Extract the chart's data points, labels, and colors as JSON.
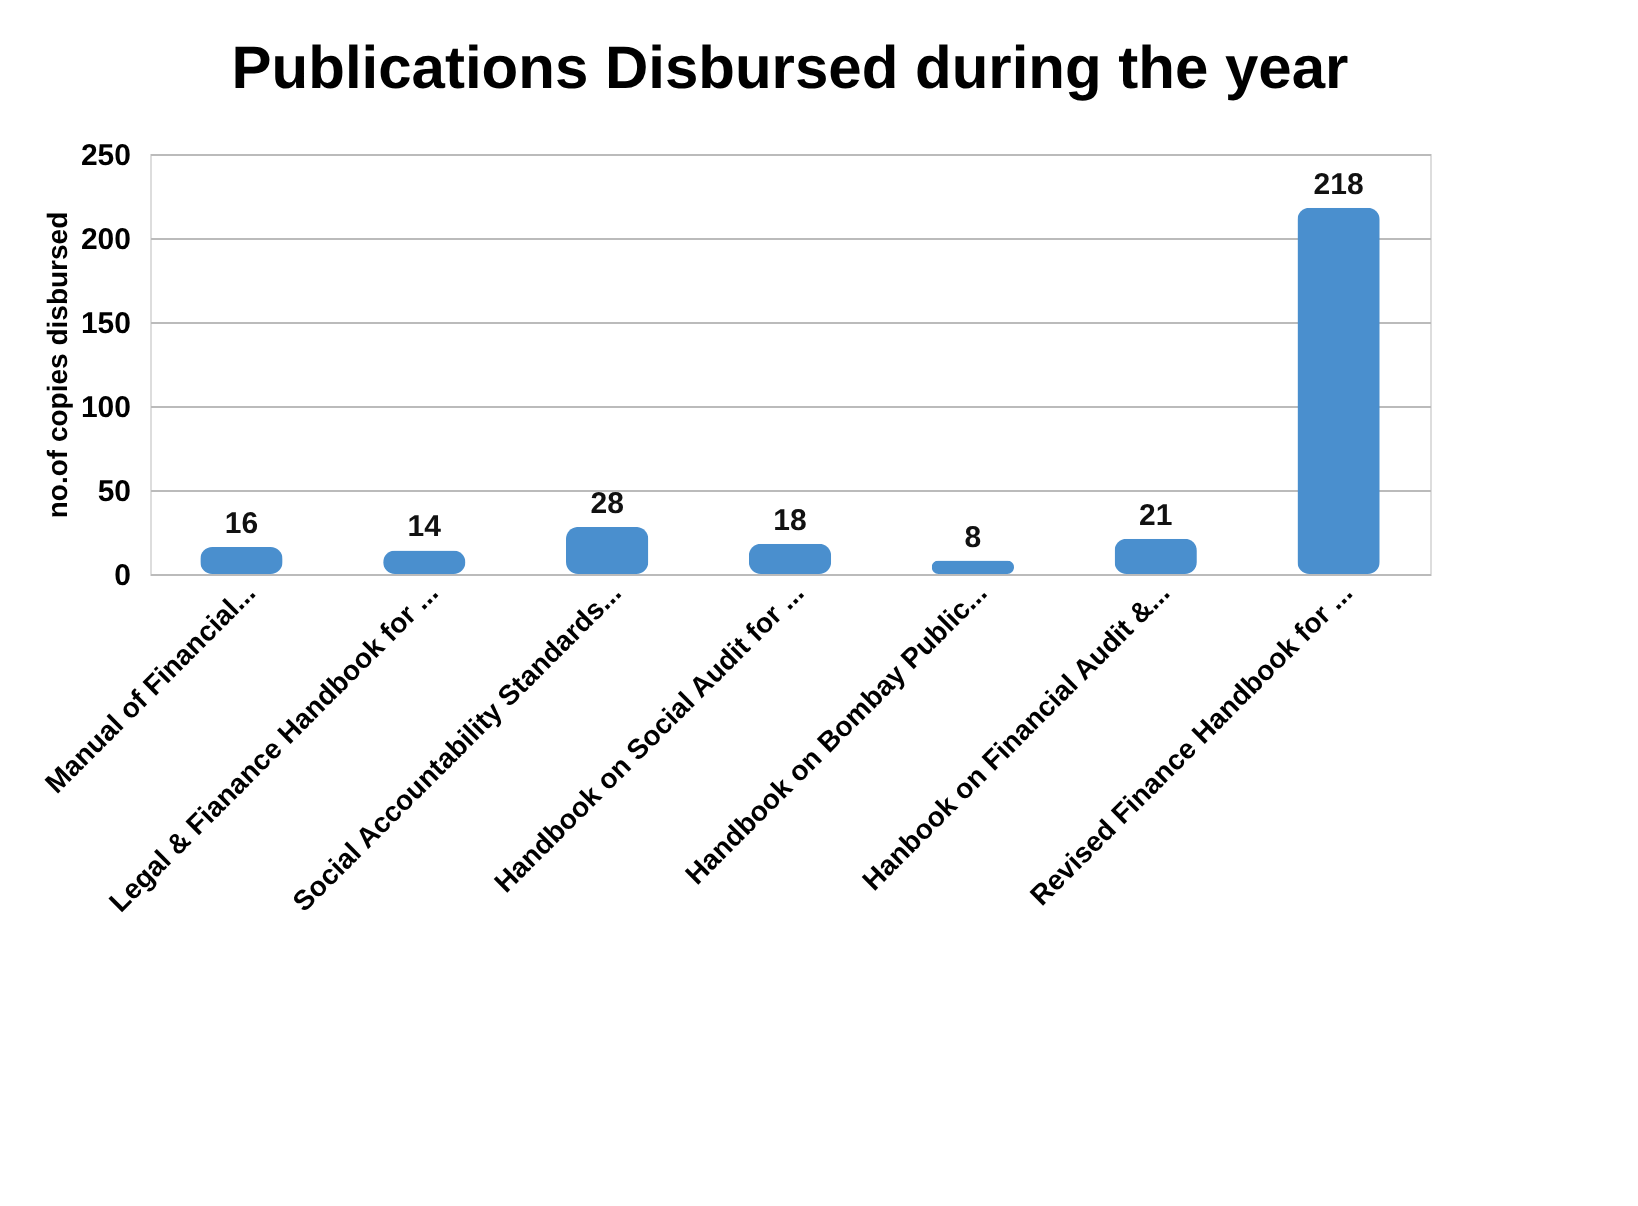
{
  "chart_data": {
    "type": "bar",
    "title": "Publications Disbursed during the year",
    "ylabel": "no.of copies disbursed",
    "categories": [
      "Manual of Financial...",
      "Legal & Fianance Handbook for ...",
      "Social Accountability Standards...",
      "Handbook on Social Audit for ...",
      "Handbook on Bombay Public...",
      "Hanbook on Financial Audit &...",
      "Revised Finance Handbook for ..."
    ],
    "values": [
      16,
      14,
      28,
      18,
      8,
      21,
      218
    ],
    "color": "#4a8fce",
    "ylim": [
      0,
      250
    ],
    "yticks": [
      0,
      50,
      100,
      150,
      200,
      250
    ],
    "grid": "y",
    "data_labels": true
  }
}
